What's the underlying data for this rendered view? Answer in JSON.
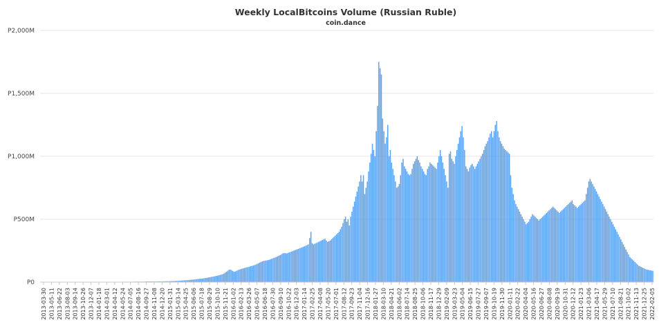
{
  "chart_data": {
    "type": "bar",
    "title": "Weekly LocalBitcoins Volume (Russian Ruble)",
    "subtitle": "coin.dance",
    "xlabel": "",
    "ylabel": "",
    "ylim": [
      0,
      2000
    ],
    "y_ticks": [
      {
        "value": 0,
        "label": "P0"
      },
      {
        "value": 500,
        "label": "P500M"
      },
      {
        "value": 1000,
        "label": "P1,000M"
      },
      {
        "value": 1500,
        "label": "P1,500M"
      },
      {
        "value": 2000,
        "label": "P2,000M"
      }
    ],
    "grid": true,
    "legend": "none",
    "bar_color": "#5aa2f0",
    "x_start": "2013-03-30",
    "x_end": "2022-02-05",
    "x_tick_labels": [
      "2013-03-30",
      "2013-05-11",
      "2013-06-22",
      "2013-08-03",
      "2013-09-14",
      "2013-10-26",
      "2013-12-07",
      "2014-01-18",
      "2014-03-01",
      "2014-04-12",
      "2014-05-24",
      "2014-07-05",
      "2014-08-16",
      "2014-09-27",
      "2014-11-08",
      "2014-12-20",
      "2015-01-31",
      "2015-03-14",
      "2015-04-25",
      "2015-06-06",
      "2015-07-18",
      "2015-08-29",
      "2015-10-10",
      "2015-11-21",
      "2016-01-02",
      "2016-02-13",
      "2016-03-26",
      "2016-05-07",
      "2016-06-18",
      "2016-07-30",
      "2016-09-10",
      "2016-10-22",
      "2016-12-03",
      "2017-01-14",
      "2017-02-25",
      "2017-04-08",
      "2017-05-20",
      "2017-07-01",
      "2017-08-12",
      "2017-09-23",
      "2017-11-04",
      "2017-12-16",
      "2018-01-27",
      "2018-03-10",
      "2018-04-21",
      "2018-06-02",
      "2018-07-14",
      "2018-08-25",
      "2018-10-06",
      "2018-11-17",
      "2018-12-29",
      "2019-02-09",
      "2019-03-23",
      "2019-05-04",
      "2019-06-15",
      "2019-07-27",
      "2019-09-07",
      "2019-10-19",
      "2019-11-30",
      "2020-01-11",
      "2020-02-22",
      "2020-04-04",
      "2020-05-16",
      "2020-06-27",
      "2020-08-08",
      "2020-09-19",
      "2020-10-31",
      "2020-12-12",
      "2021-01-23",
      "2021-03-06",
      "2021-04-17",
      "2021-05-29",
      "2021-07-10",
      "2021-08-21",
      "2021-10-02",
      "2021-11-13",
      "2021-12-25",
      "2022-02-05"
    ],
    "values": [
      0,
      0,
      0,
      0,
      0,
      0,
      0,
      0,
      0,
      0,
      0,
      0,
      0,
      0,
      0,
      0,
      0,
      0,
      0,
      0,
      0,
      0,
      0,
      0,
      0,
      0,
      0,
      0,
      0,
      0,
      0,
      0,
      0,
      0,
      0,
      0,
      0,
      0,
      0,
      0,
      0,
      0,
      0,
      0,
      1,
      1,
      1,
      1,
      1,
      1,
      1,
      1,
      1,
      2,
      2,
      2,
      2,
      2,
      2,
      2,
      2,
      2,
      2,
      2,
      3,
      3,
      3,
      3,
      3,
      3,
      3,
      3,
      3,
      4,
      4,
      4,
      4,
      4,
      4,
      4,
      4,
      4,
      5,
      5,
      5,
      5,
      5,
      5,
      5,
      5,
      5,
      5,
      6,
      6,
      6,
      6,
      6,
      7,
      7,
      7,
      7,
      8,
      8,
      8,
      8,
      9,
      10,
      10,
      11,
      12,
      12,
      13,
      14,
      15,
      15,
      16,
      17,
      18,
      19,
      20,
      21,
      22,
      24,
      25,
      26,
      27,
      28,
      30,
      31,
      33,
      35,
      37,
      39,
      41,
      43,
      45,
      47,
      49,
      51,
      54,
      57,
      60,
      63,
      68,
      75,
      82,
      90,
      98,
      100,
      95,
      88,
      82,
      85,
      90,
      95,
      100,
      103,
      106,
      109,
      112,
      115,
      118,
      120,
      123,
      126,
      129,
      132,
      136,
      140,
      145,
      150,
      155,
      160,
      165,
      168,
      170,
      172,
      174,
      176,
      180,
      184,
      188,
      192,
      196,
      200,
      205,
      210,
      215,
      222,
      228,
      232,
      230,
      228,
      232,
      236,
      240,
      244,
      248,
      252,
      256,
      260,
      264,
      268,
      272,
      276,
      280,
      285,
      290,
      295,
      300,
      350,
      400,
      310,
      300,
      305,
      310,
      315,
      320,
      325,
      330,
      335,
      340,
      345,
      330,
      320,
      325,
      330,
      340,
      350,
      360,
      370,
      380,
      390,
      400,
      420,
      440,
      470,
      500,
      520,
      480,
      500,
      450,
      520,
      560,
      600,
      640,
      680,
      720,
      760,
      800,
      850,
      800,
      850,
      700,
      750,
      800,
      880,
      950,
      1020,
      1100,
      1050,
      1000,
      1200,
      1400,
      1750,
      1700,
      1650,
      1300,
      1200,
      1100,
      1150,
      1250,
      1000,
      1050,
      950,
      900,
      850,
      800,
      750,
      760,
      780,
      850,
      950,
      980,
      920,
      900,
      880,
      860,
      850,
      860,
      900,
      940,
      960,
      980,
      1000,
      970,
      950,
      920,
      900,
      880,
      860,
      850,
      900,
      920,
      950,
      940,
      930,
      920,
      910,
      900,
      950,
      1000,
      1050,
      1000,
      950,
      900,
      850,
      800,
      750,
      1020,
      1040,
      980,
      960,
      940,
      1000,
      1050,
      1100,
      1150,
      1200,
      1240,
      1150,
      1050,
      920,
      900,
      880,
      910,
      930,
      940,
      920,
      900,
      920,
      940,
      960,
      980,
      1000,
      1020,
      1050,
      1080,
      1100,
      1120,
      1150,
      1180,
      1200,
      1150,
      1200,
      1250,
      1280,
      1200,
      1150,
      1120,
      1100,
      1080,
      1060,
      1050,
      1040,
      1030,
      1020,
      850,
      750,
      700,
      650,
      620,
      600,
      580,
      560,
      540,
      520,
      500,
      480,
      460,
      470,
      480,
      500,
      520,
      540,
      530,
      520,
      510,
      500,
      490,
      500,
      510,
      520,
      530,
      540,
      550,
      560,
      570,
      580,
      590,
      600,
      590,
      580,
      570,
      560,
      550,
      560,
      570,
      580,
      590,
      600,
      610,
      620,
      630,
      640,
      650,
      620,
      610,
      600,
      590,
      600,
      610,
      620,
      630,
      640,
      650,
      700,
      750,
      800,
      820,
      800,
      780,
      760,
      740,
      720,
      700,
      680,
      660,
      640,
      620,
      600,
      580,
      560,
      540,
      520,
      500,
      480,
      460,
      440,
      420,
      400,
      380,
      360,
      340,
      320,
      300,
      280,
      260,
      240,
      220,
      200,
      190,
      180,
      170,
      160,
      150,
      140,
      130,
      125,
      120,
      115,
      110,
      105,
      100,
      98,
      96,
      94,
      92,
      90
    ]
  }
}
